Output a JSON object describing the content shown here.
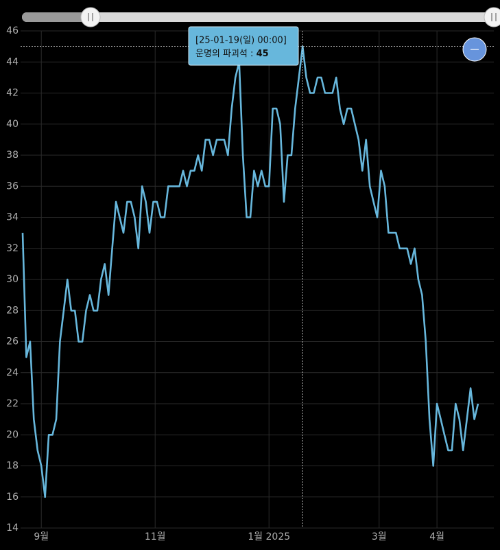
{
  "chart_data": {
    "type": "line",
    "x": [
      "2024-08-22",
      "2024-08-24",
      "2024-08-26",
      "2024-08-28",
      "2024-08-30",
      "2024-09-01",
      "2024-09-03",
      "2024-09-05",
      "2024-09-07",
      "2024-09-09",
      "2024-09-11",
      "2024-09-13",
      "2024-09-15",
      "2024-09-17",
      "2024-09-19",
      "2024-09-21",
      "2024-09-23",
      "2024-09-25",
      "2024-09-27",
      "2024-09-29",
      "2024-10-01",
      "2024-10-03",
      "2024-10-05",
      "2024-10-07",
      "2024-10-09",
      "2024-10-11",
      "2024-10-13",
      "2024-10-15",
      "2024-10-17",
      "2024-10-19",
      "2024-10-21",
      "2024-10-23",
      "2024-10-25",
      "2024-10-27",
      "2024-10-29",
      "2024-10-31",
      "2024-11-02",
      "2024-11-04",
      "2024-11-06",
      "2024-11-08",
      "2024-11-10",
      "2024-11-12",
      "2024-11-14",
      "2024-11-16",
      "2024-11-18",
      "2024-11-20",
      "2024-11-22",
      "2024-11-24",
      "2024-11-26",
      "2024-11-28",
      "2024-11-30",
      "2024-12-02",
      "2024-12-04",
      "2024-12-06",
      "2024-12-08",
      "2024-12-10",
      "2024-12-12",
      "2024-12-14",
      "2024-12-16",
      "2024-12-18",
      "2024-12-20",
      "2024-12-22",
      "2024-12-24",
      "2024-12-26",
      "2024-12-28",
      "2024-12-30",
      "2025-01-01",
      "2025-01-03",
      "2025-01-05",
      "2025-01-07",
      "2025-01-09",
      "2025-01-11",
      "2025-01-13",
      "2025-01-15",
      "2025-01-17",
      "2025-01-19",
      "2025-01-21",
      "2025-01-23",
      "2025-01-25",
      "2025-01-27",
      "2025-01-29",
      "2025-01-31",
      "2025-02-02",
      "2025-02-04",
      "2025-02-06",
      "2025-02-08",
      "2025-02-10",
      "2025-02-12",
      "2025-02-14",
      "2025-02-16",
      "2025-02-18",
      "2025-02-20",
      "2025-02-22",
      "2025-02-24",
      "2025-02-26",
      "2025-02-28",
      "2025-03-02",
      "2025-03-04",
      "2025-03-06",
      "2025-03-08",
      "2025-03-10",
      "2025-03-12",
      "2025-03-14",
      "2025-03-16",
      "2025-03-18",
      "2025-03-20",
      "2025-03-22",
      "2025-03-24",
      "2025-03-26",
      "2025-03-28",
      "2025-03-30",
      "2025-04-01",
      "2025-04-03",
      "2025-04-05",
      "2025-04-07",
      "2025-04-09",
      "2025-04-11",
      "2025-04-13",
      "2025-04-15",
      "2025-04-17",
      "2025-04-19",
      "2025-04-21",
      "2025-04-23"
    ],
    "series": [
      {
        "name": "운명의 파괴석",
        "color": "#67b7dc",
        "values": [
          33,
          25,
          26,
          21,
          19,
          18,
          16,
          20,
          20,
          21,
          26,
          28,
          30,
          28,
          28,
          26,
          26,
          28,
          29,
          28,
          28,
          30,
          31,
          29,
          32,
          35,
          34,
          33,
          35,
          35,
          34,
          32,
          36,
          35,
          33,
          35,
          35,
          34,
          34,
          36,
          36,
          36,
          36,
          37,
          36,
          37,
          37,
          38,
          37,
          39,
          39,
          38,
          39,
          39,
          39,
          38,
          41,
          43,
          44,
          38,
          34,
          34,
          37,
          36,
          37,
          36,
          36,
          41,
          41,
          40,
          35,
          38,
          38,
          41,
          43,
          45,
          43,
          42,
          42,
          43,
          43,
          42,
          42,
          42,
          43,
          41,
          40,
          41,
          41,
          40,
          39,
          37,
          39,
          36,
          35,
          34,
          37,
          36,
          33,
          33,
          33,
          32,
          32,
          32,
          31,
          32,
          30,
          29,
          26,
          21,
          18,
          22,
          21,
          20,
          19,
          19,
          22,
          21,
          19,
          21,
          23,
          21,
          22
        ]
      }
    ],
    "xlim": [
      "2024-08-22",
      "2025-04-23"
    ],
    "xticks": [
      {
        "value": "2024-09-01",
        "label": "9월"
      },
      {
        "value": "2024-11-01",
        "label": "11월"
      },
      {
        "value": "2025-01-01",
        "label": "1월 2025"
      },
      {
        "value": "2025-03-01",
        "label": "3월"
      },
      {
        "value": "2025-04-01",
        "label": "4월"
      }
    ],
    "ylim": [
      14,
      46
    ],
    "yticks": [
      14,
      16,
      18,
      20,
      22,
      24,
      26,
      28,
      30,
      32,
      34,
      36,
      38,
      40,
      42,
      44,
      46
    ],
    "grid": true,
    "tooltip": {
      "title": "[25-01-19(일) 00:00]",
      "separator": ":",
      "index": 75
    }
  }
}
